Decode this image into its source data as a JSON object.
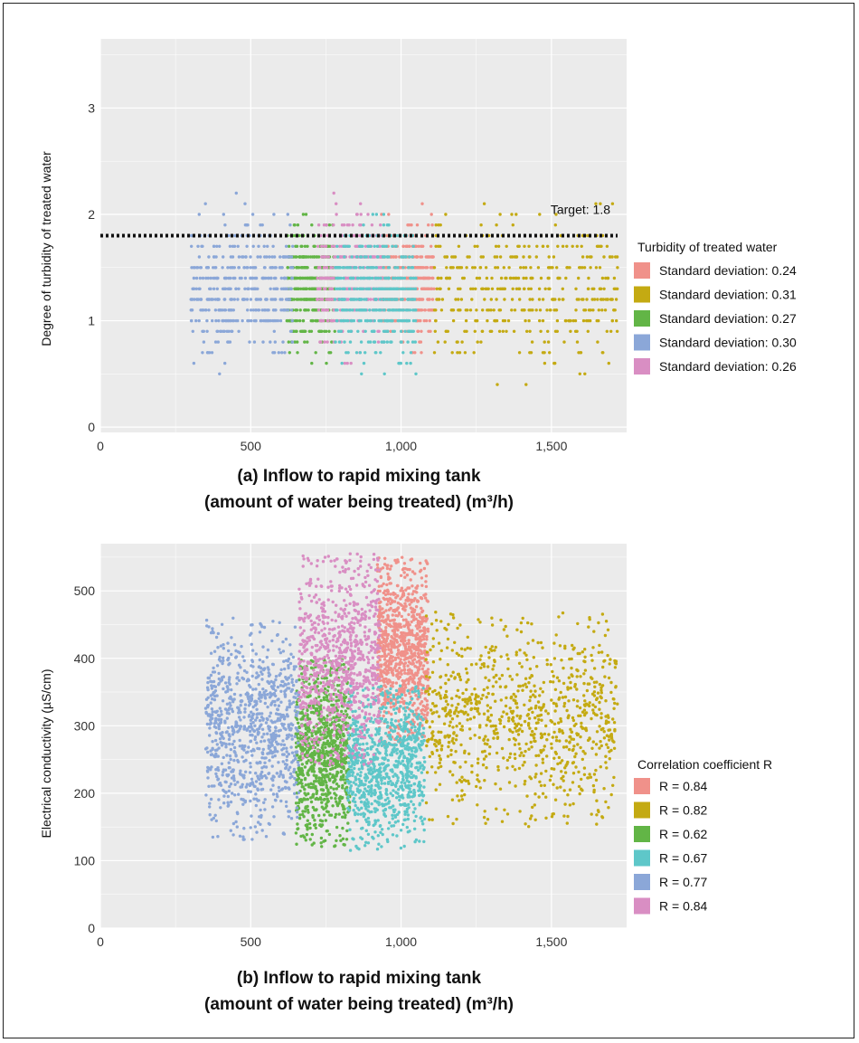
{
  "chart_data": [
    {
      "type": "scatter",
      "panel": "a",
      "xlabel_line1": "(a) Inflow to rapid mixing tank",
      "xlabel_line2": "(amount of water being treated) (m³/h)",
      "ylabel": "Degree of turbidity of treated water",
      "xlim": [
        0,
        1750
      ],
      "ylim": [
        -0.05,
        3.65
      ],
      "x_ticks": [
        0,
        500,
        1000,
        1500
      ],
      "x_tick_labels": [
        "0",
        "500",
        "1,000",
        "1,500"
      ],
      "y_ticks": [
        0,
        1,
        2,
        3
      ],
      "y_tick_labels": [
        "0",
        "1",
        "2",
        "3"
      ],
      "grid": true,
      "legend_title": "Turbidity of treated water",
      "legend_position": "right",
      "reference_line": {
        "y": 1.8,
        "label": "Target: 1.8",
        "style": "dotted"
      },
      "series": [
        {
          "name": "Standard deviation: 0.24",
          "color": "#F0918A",
          "x_range": [
            930,
            1110
          ],
          "y_center": 1.35,
          "y_sd": 0.24
        },
        {
          "name": "Standard deviation: 0.31",
          "color": "#C4AA12",
          "x_range": [
            1110,
            1720
          ],
          "y_center": 1.3,
          "y_sd": 0.31
        },
        {
          "name": "Standard deviation: 0.27",
          "color": "#62B546",
          "x_range": [
            620,
            780
          ],
          "y_center": 1.3,
          "y_sd": 0.27
        },
        {
          "name": "Standard deviation: 0.30",
          "color": "#8BA7D8",
          "x_range": [
            300,
            640
          ],
          "y_center": 1.3,
          "y_sd": 0.3
        },
        {
          "name": "Standard deviation: 0.26",
          "color": "#D98EC3",
          "x_range": [
            720,
            940
          ],
          "y_center": 1.4,
          "y_sd": 0.26
        },
        {
          "name": "",
          "color": "#5EC7C9",
          "x_range": [
            780,
            1050
          ],
          "y_center": 1.25,
          "y_sd": 0.3
        }
      ]
    },
    {
      "type": "scatter",
      "panel": "b",
      "xlabel_line1": "(b) Inflow to rapid mixing tank",
      "xlabel_line2": "(amount of water being treated) (m³/h)",
      "ylabel": "Electrical conductivity (µS/cm)",
      "xlim": [
        0,
        1750
      ],
      "ylim": [
        0,
        570
      ],
      "x_ticks": [
        0,
        500,
        1000,
        1500
      ],
      "x_tick_labels": [
        "0",
        "500",
        "1,000",
        "1,500"
      ],
      "y_ticks": [
        0,
        100,
        200,
        300,
        400,
        500
      ],
      "y_tick_labels": [
        "0",
        "100",
        "200",
        "300",
        "400",
        "500"
      ],
      "grid": true,
      "legend_title": "Correlation coefficient R",
      "legend_position": "right",
      "series": [
        {
          "name": "R = 0.84",
          "color": "#F0918A",
          "x_range": [
            920,
            1090
          ],
          "y_range": [
            270,
            550
          ]
        },
        {
          "name": "R = 0.82",
          "color": "#C4AA12",
          "x_range": [
            1080,
            1720
          ],
          "y_range": [
            150,
            470
          ]
        },
        {
          "name": "R = 0.62",
          "color": "#62B546",
          "x_range": [
            650,
            830
          ],
          "y_range": [
            120,
            400
          ]
        },
        {
          "name": "R = 0.67",
          "color": "#5EC7C9",
          "x_range": [
            820,
            1080
          ],
          "y_range": [
            115,
            360
          ]
        },
        {
          "name": "R = 0.77",
          "color": "#8BA7D8",
          "x_range": [
            350,
            660
          ],
          "y_range": [
            130,
            460
          ]
        },
        {
          "name": "R = 0.84",
          "color": "#D98EC3",
          "x_range": [
            660,
            930
          ],
          "y_range": [
            240,
            555
          ]
        }
      ]
    }
  ]
}
